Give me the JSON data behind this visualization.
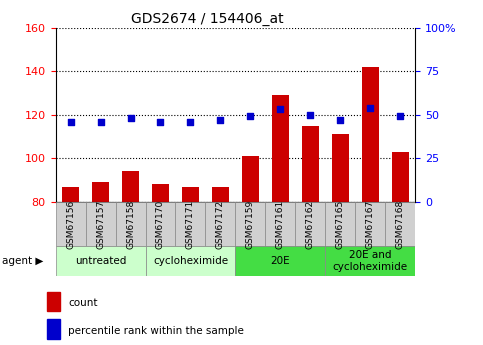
{
  "title": "GDS2674 / 154406_at",
  "samples": [
    "GSM67156",
    "GSM67157",
    "GSM67158",
    "GSM67170",
    "GSM67171",
    "GSM67172",
    "GSM67159",
    "GSM67161",
    "GSM67162",
    "GSM67165",
    "GSM67167",
    "GSM67168"
  ],
  "counts": [
    87,
    89,
    94,
    88,
    87,
    87,
    101,
    129,
    115,
    111,
    142,
    103
  ],
  "percentiles": [
    46,
    46,
    48,
    46,
    46,
    47,
    49,
    53,
    50,
    47,
    54,
    49
  ],
  "ylim_left": [
    80,
    160
  ],
  "ylim_right": [
    0,
    100
  ],
  "yticks_left": [
    80,
    100,
    120,
    140,
    160
  ],
  "yticks_right": [
    0,
    25,
    50,
    75,
    100
  ],
  "yticklabels_right": [
    "0",
    "25",
    "50",
    "75",
    "100%"
  ],
  "bar_color": "#cc0000",
  "dot_color": "#0000cc",
  "bar_bottom": 80,
  "groups": [
    {
      "label": "untreated",
      "start": 0,
      "end": 3,
      "color": "#ccffcc"
    },
    {
      "label": "cycloheximide",
      "start": 3,
      "end": 6,
      "color": "#ccffcc"
    },
    {
      "label": "20E",
      "start": 6,
      "end": 9,
      "color": "#44dd44"
    },
    {
      "label": "20E and\ncycloheximide",
      "start": 9,
      "end": 12,
      "color": "#44dd44"
    }
  ],
  "agent_label": "agent",
  "legend_count_label": "count",
  "legend_pct_label": "percentile rank within the sample",
  "tick_bg": "#d0d0d0"
}
